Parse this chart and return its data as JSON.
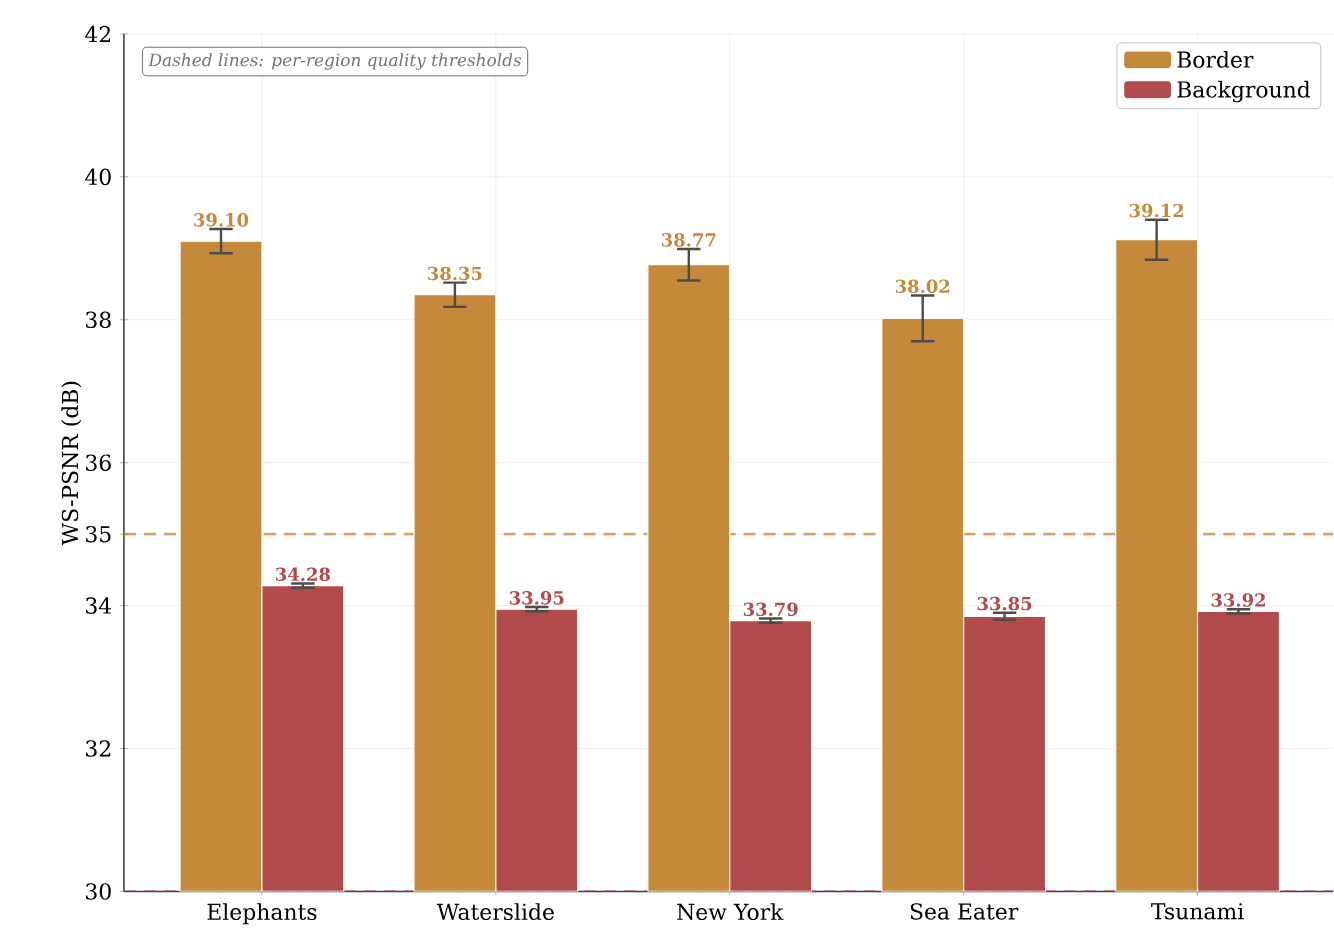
{
  "chart_data": {
    "type": "bar",
    "ylabel": "WS-PSNR (dB)",
    "categories": [
      "Elephants",
      "Waterslide",
      "New York",
      "Sea Eater",
      "Tsunami"
    ],
    "series": [
      {
        "name": "Border",
        "color": "#c4893a",
        "values": [
          39.1,
          38.35,
          38.77,
          38.02,
          39.12
        ],
        "errors": [
          0.17,
          0.17,
          0.22,
          0.32,
          0.28
        ],
        "value_labels": [
          "39.10",
          "38.35",
          "38.77",
          "38.02",
          "39.12"
        ]
      },
      {
        "name": "Background",
        "color": "#b04a4b",
        "values": [
          34.28,
          33.95,
          33.79,
          33.85,
          33.92
        ],
        "errors": [
          0.03,
          0.03,
          0.03,
          0.05,
          0.03
        ],
        "value_labels": [
          "34.28",
          "33.95",
          "33.79",
          "33.85",
          "33.92"
        ]
      }
    ],
    "ylim": [
      30,
      42
    ],
    "yticks": [
      30,
      32,
      34,
      35,
      36,
      38,
      40,
      42
    ],
    "ref_lines": [
      {
        "axis": "y",
        "value": 35,
        "color": "#c4893a",
        "line_style": "dashed"
      },
      {
        "axis": "y",
        "value": 30,
        "color": "#b04a4b",
        "line_style": "dashed"
      }
    ],
    "annotations": [
      "Dashed lines: per-region quality thresholds"
    ],
    "grid": true,
    "legend": "top right"
  }
}
